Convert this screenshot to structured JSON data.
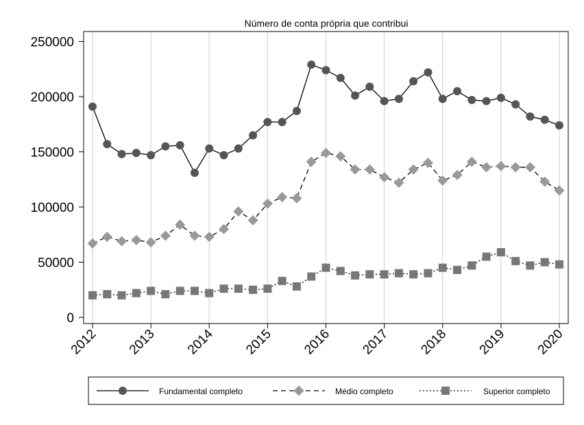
{
  "chart_data": {
    "type": "line",
    "title": "Número de conta própria que contribui",
    "xlabel": "",
    "ylabel": "",
    "xlim": [
      2012,
      2020
    ],
    "ylim": [
      0,
      260000
    ],
    "x_ticks": [
      "2012",
      "2013",
      "2014",
      "2015",
      "2016",
      "2017",
      "2018",
      "2019",
      "2020"
    ],
    "y_ticks": [
      "0",
      "50000",
      "100000",
      "150000",
      "200000",
      "250000"
    ],
    "grid": "vertical",
    "legend_position": "bottom",
    "x": [
      2012.0,
      2012.25,
      2012.5,
      2012.75,
      2013.0,
      2013.25,
      2013.5,
      2013.75,
      2014.0,
      2014.25,
      2014.5,
      2014.75,
      2015.0,
      2015.25,
      2015.5,
      2015.75,
      2016.0,
      2016.25,
      2016.5,
      2016.75,
      2017.0,
      2017.25,
      2017.5,
      2017.75,
      2018.0,
      2018.25,
      2018.5,
      2018.75,
      2019.0,
      2019.25,
      2019.5,
      2019.75,
      2020.0
    ],
    "series": [
      {
        "name": "Fundamental completo",
        "color": "#555555",
        "marker": "circle",
        "line": "solid",
        "values": [
          191000,
          157000,
          148000,
          149000,
          147000,
          155000,
          156000,
          131000,
          153000,
          147000,
          153000,
          165000,
          177000,
          177000,
          187000,
          229000,
          224000,
          217000,
          201000,
          209000,
          196000,
          198000,
          214000,
          222000,
          198000,
          205000,
          197000,
          196000,
          199000,
          193000,
          182000,
          179000,
          174000
        ]
      },
      {
        "name": "Médio completo",
        "color": "#999999",
        "marker": "diamond",
        "line": "dashed",
        "values": [
          67000,
          73000,
          69000,
          70000,
          68000,
          74000,
          84000,
          74000,
          73000,
          80000,
          96000,
          88000,
          103000,
          109000,
          108000,
          141000,
          149000,
          146000,
          134000,
          134000,
          127000,
          122000,
          134000,
          140000,
          124000,
          129000,
          141000,
          136000,
          137000,
          136000,
          136000,
          123000,
          115000
        ]
      },
      {
        "name": "Superior completo",
        "color": "#777777",
        "marker": "square",
        "line": "dotted",
        "values": [
          20000,
          21000,
          20000,
          22000,
          24000,
          21000,
          24000,
          24000,
          22000,
          26000,
          26000,
          25000,
          26000,
          33000,
          28000,
          37000,
          45000,
          42000,
          38000,
          39000,
          39000,
          40000,
          39000,
          40000,
          45000,
          43000,
          47000,
          55000,
          59000,
          51000,
          47000,
          50000,
          48000
        ]
      }
    ]
  }
}
